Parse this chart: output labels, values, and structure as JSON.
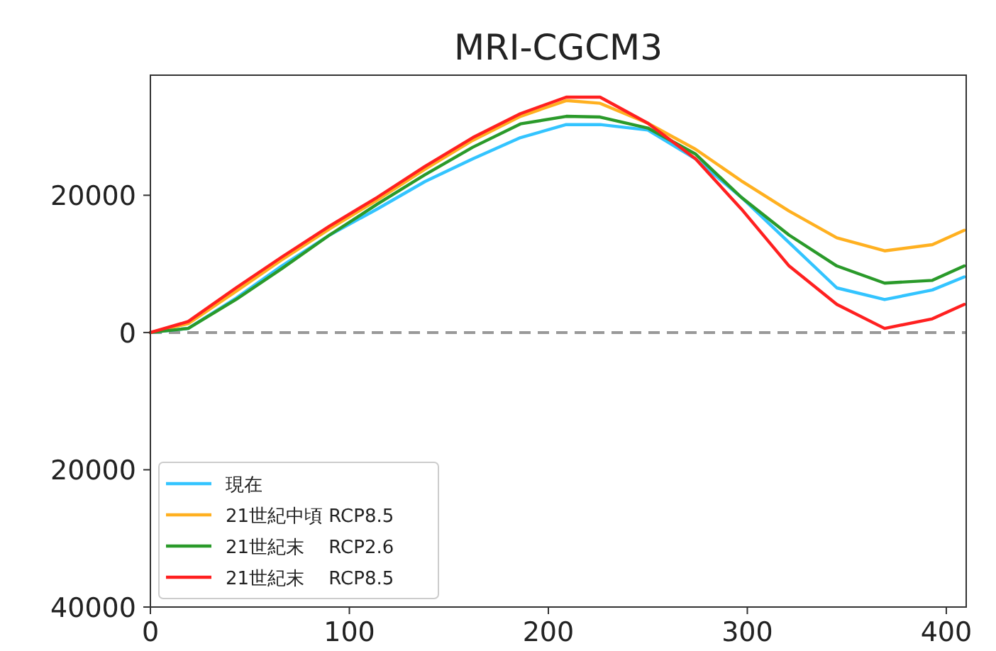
{
  "chart_data": {
    "type": "line",
    "title": "MRI-CGCM3",
    "x": [
      0,
      19,
      43,
      66,
      90,
      114,
      138,
      162,
      186,
      209,
      226,
      250,
      274,
      297,
      321,
      345,
      369,
      393,
      409
    ],
    "series": [
      {
        "name": "現在",
        "color": "#33c4ff",
        "values": [
          0,
          600,
          5000,
          9700,
          14200,
          18000,
          22000,
          25300,
          28400,
          30300,
          30300,
          29500,
          25300,
          19700,
          13100,
          6500,
          4800,
          6200,
          8100
        ]
      },
      {
        "name": "21世紀中頃 RCP8.5",
        "color": "#ffb020",
        "values": [
          0,
          1300,
          6000,
          10600,
          15100,
          19300,
          23800,
          28000,
          31500,
          33800,
          33400,
          30500,
          26700,
          22100,
          17700,
          13800,
          11900,
          12800,
          14900
        ]
      },
      {
        "name": "21世紀末　 RCP2.6",
        "color": "#2a9a2a",
        "values": [
          0,
          600,
          4800,
          9300,
          14200,
          18700,
          23000,
          27000,
          30400,
          31500,
          31400,
          29800,
          26000,
          19700,
          14200,
          9700,
          7200,
          7600,
          9700
        ]
      },
      {
        "name": "21世紀末　 RCP8.5",
        "color": "#ff2020",
        "values": [
          0,
          1600,
          6500,
          11000,
          15500,
          19700,
          24200,
          28400,
          31900,
          34300,
          34300,
          30500,
          25300,
          18000,
          9700,
          4100,
          600,
          2000,
          4100
        ]
      }
    ],
    "xlim": [
      0,
      410
    ],
    "xticks": [
      0,
      100,
      200,
      300,
      400
    ],
    "ylim": [
      -40000,
      37500
    ],
    "yticks": [
      {
        "value": -40000,
        "label": "40000"
      },
      {
        "value": -20000,
        "label": "20000"
      },
      0,
      20000
    ],
    "ref_lines": [
      {
        "axis": "y",
        "value": 0,
        "color": "#999999",
        "line_style": "dashed"
      }
    ],
    "legend": "bottom left",
    "grid": false
  }
}
